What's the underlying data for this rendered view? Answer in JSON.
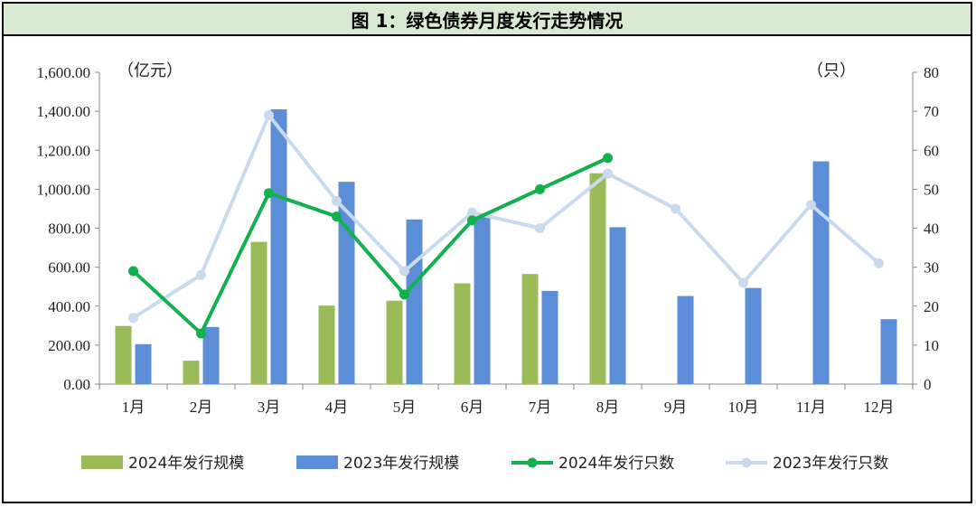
{
  "title": "图 1：绿色债券月度发行走势情况",
  "chart_data": {
    "type": "bar+line",
    "categories": [
      "1月",
      "2月",
      "3月",
      "4月",
      "5月",
      "6月",
      "7月",
      "8月",
      "9月",
      "10月",
      "11月",
      "12月"
    ],
    "left_axis": {
      "unit": "（亿元）",
      "ylim": [
        0,
        1600
      ],
      "ticks": [
        "0.00",
        "200.00",
        "400.00",
        "600.00",
        "800.00",
        "1,000.00",
        "1,200.00",
        "1,400.00",
        "1,600.00"
      ]
    },
    "right_axis": {
      "unit": "（只）",
      "ylim": [
        0,
        80
      ],
      "ticks": [
        "0",
        "10",
        "20",
        "30",
        "40",
        "50",
        "60",
        "70",
        "80"
      ]
    },
    "bar_series": [
      {
        "name": "2024年发行规模",
        "color": "#9bbb59",
        "values": [
          298,
          120,
          730,
          403,
          428,
          517,
          565,
          1082,
          null,
          null,
          null,
          null
        ]
      },
      {
        "name": "2023年发行规模",
        "color": "#5b8ed6",
        "values": [
          205,
          293,
          1410,
          1038,
          845,
          860,
          478,
          805,
          452,
          493,
          1143,
          333
        ]
      }
    ],
    "line_series": [
      {
        "name": "2024年发行只数",
        "color": "#13b04f",
        "values": [
          29,
          13,
          49,
          43,
          23,
          42,
          50,
          58,
          null,
          null,
          null,
          null
        ]
      },
      {
        "name": "2023年发行只数",
        "color": "#c9d9ee",
        "values": [
          17,
          28,
          69,
          47,
          29,
          44,
          40,
          54,
          45,
          26,
          46,
          31
        ]
      }
    ],
    "legend_position": "bottom",
    "grid": false
  }
}
